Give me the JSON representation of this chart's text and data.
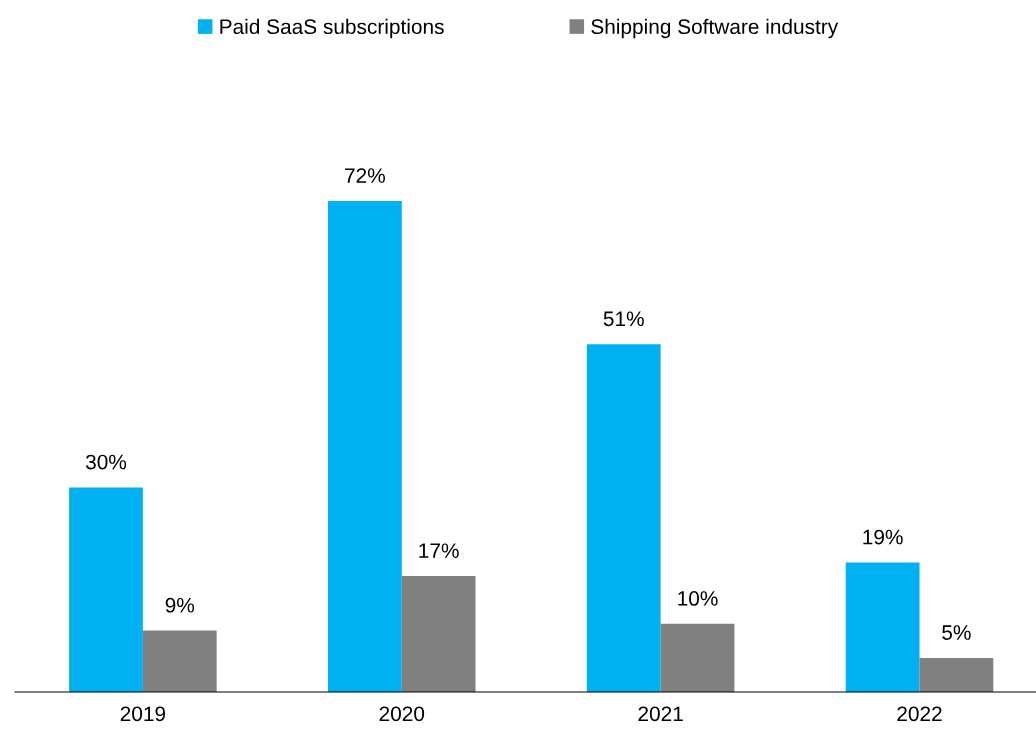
{
  "chart_data": {
    "type": "bar",
    "categories": [
      "2019",
      "2020",
      "2021",
      "2022"
    ],
    "series": [
      {
        "name": "Paid SaaS subscriptions",
        "color": "#00b0f0",
        "values": [
          30,
          72,
          51,
          19
        ],
        "value_labels": [
          "30%",
          "72%",
          "51%",
          "19%"
        ]
      },
      {
        "name": "Shipping Software industry",
        "color": "#808080",
        "values": [
          9,
          17,
          10,
          5
        ],
        "value_labels": [
          "9%",
          "17%",
          "10%",
          "5%"
        ]
      }
    ],
    "legend": "top",
    "grid": false
  }
}
